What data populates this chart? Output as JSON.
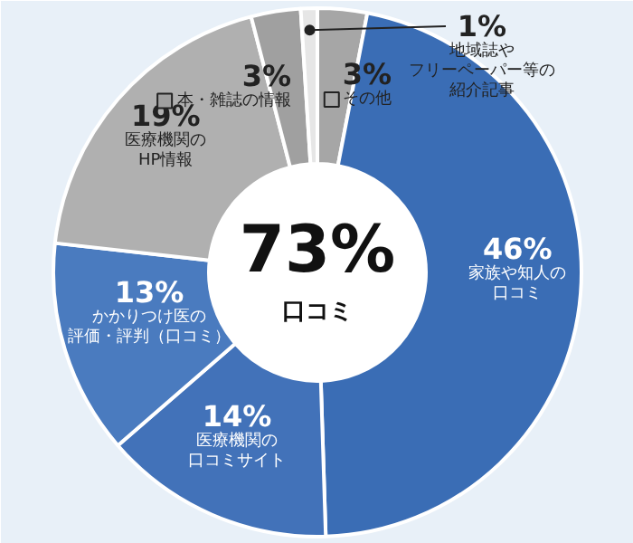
{
  "chart_data": {
    "type": "donut",
    "categories": [
      "その他",
      "家族や知人の口コミ",
      "医療機関の口コミサイト",
      "かかりつけ医の評価・評判（口コミ）",
      "医療機関のHP情報",
      "本・雑誌の情報",
      "地域誌やフリーペーパー等の紹介記事"
    ],
    "values": [
      3,
      46,
      14,
      13,
      19,
      3,
      1
    ],
    "colors": [
      "#a6a6a6",
      "#3a6db5",
      "#4272b9",
      "#4a7bbf",
      "#b0b0b0",
      "#a0a0a0",
      "#e6e6e6"
    ],
    "value_labels": [
      "3%",
      "46%",
      "14%",
      "13%",
      "19%",
      "3%",
      "1%"
    ],
    "legend": "top",
    "annotations": [
      "73%",
      "口コミ"
    ]
  }
}
